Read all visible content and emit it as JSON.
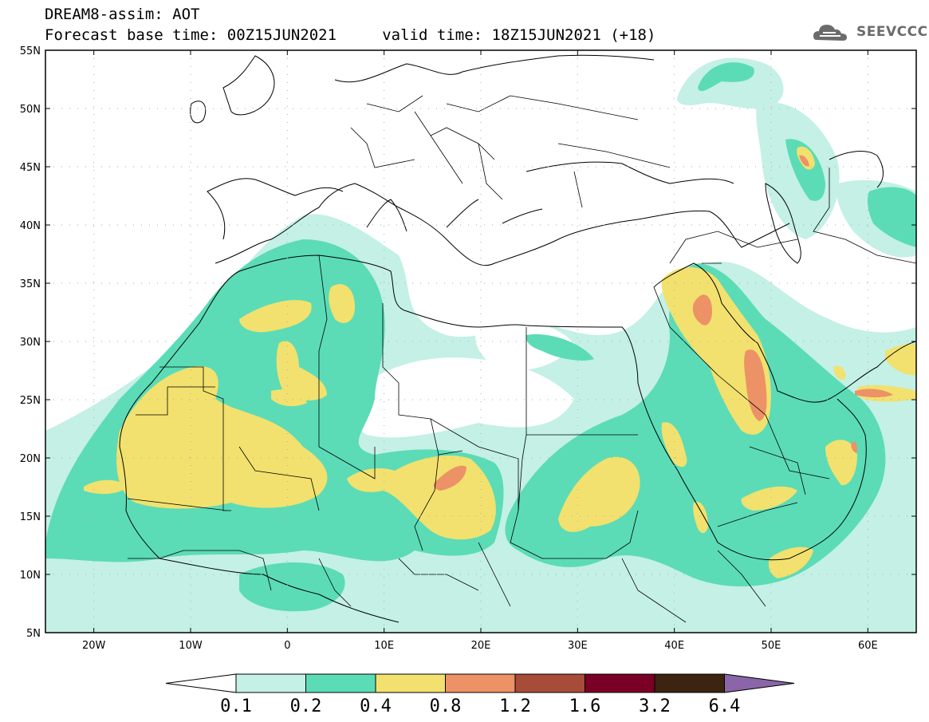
{
  "header": {
    "line1": "DREAM8-assim: AOT",
    "line2": "Forecast base time: 00Z15JUN2021     valid time: 18Z15JUN2021 (+18)"
  },
  "logo": {
    "text": "SEEVCCC",
    "icon": "cloud-icon"
  },
  "map": {
    "lon_range": [
      -25,
      65
    ],
    "lat_range": [
      5,
      55
    ],
    "lat_ticks": [
      {
        "value": 55,
        "label": "55N"
      },
      {
        "value": 50,
        "label": "50N"
      },
      {
        "value": 45,
        "label": "45N"
      },
      {
        "value": 40,
        "label": "40N"
      },
      {
        "value": 35,
        "label": "35N"
      },
      {
        "value": 30,
        "label": "30N"
      },
      {
        "value": 25,
        "label": "25N"
      },
      {
        "value": 20,
        "label": "20N"
      },
      {
        "value": 15,
        "label": "15N"
      },
      {
        "value": 10,
        "label": "10N"
      },
      {
        "value": 5,
        "label": "5N"
      }
    ],
    "lon_ticks": [
      {
        "value": -20,
        "label": "20W"
      },
      {
        "value": -10,
        "label": "10W"
      },
      {
        "value": 0,
        "label": "0"
      },
      {
        "value": 10,
        "label": "10E"
      },
      {
        "value": 20,
        "label": "20E"
      },
      {
        "value": 30,
        "label": "30E"
      },
      {
        "value": 40,
        "label": "40E"
      },
      {
        "value": 50,
        "label": "50E"
      },
      {
        "value": 60,
        "label": "60E"
      }
    ],
    "grid": "dotted"
  },
  "colorbar": {
    "levels": [
      "0.1",
      "0.2",
      "0.4",
      "0.8",
      "1.2",
      "1.6",
      "3.2",
      "6.4"
    ],
    "under_color": "#ffffff",
    "colors": [
      "#c4f0e6",
      "#5bdcb6",
      "#f2e16e",
      "#ec9266",
      "#a84c3a",
      "#7a0026",
      "#3d2410"
    ],
    "over_color": "#8a66a8"
  }
}
